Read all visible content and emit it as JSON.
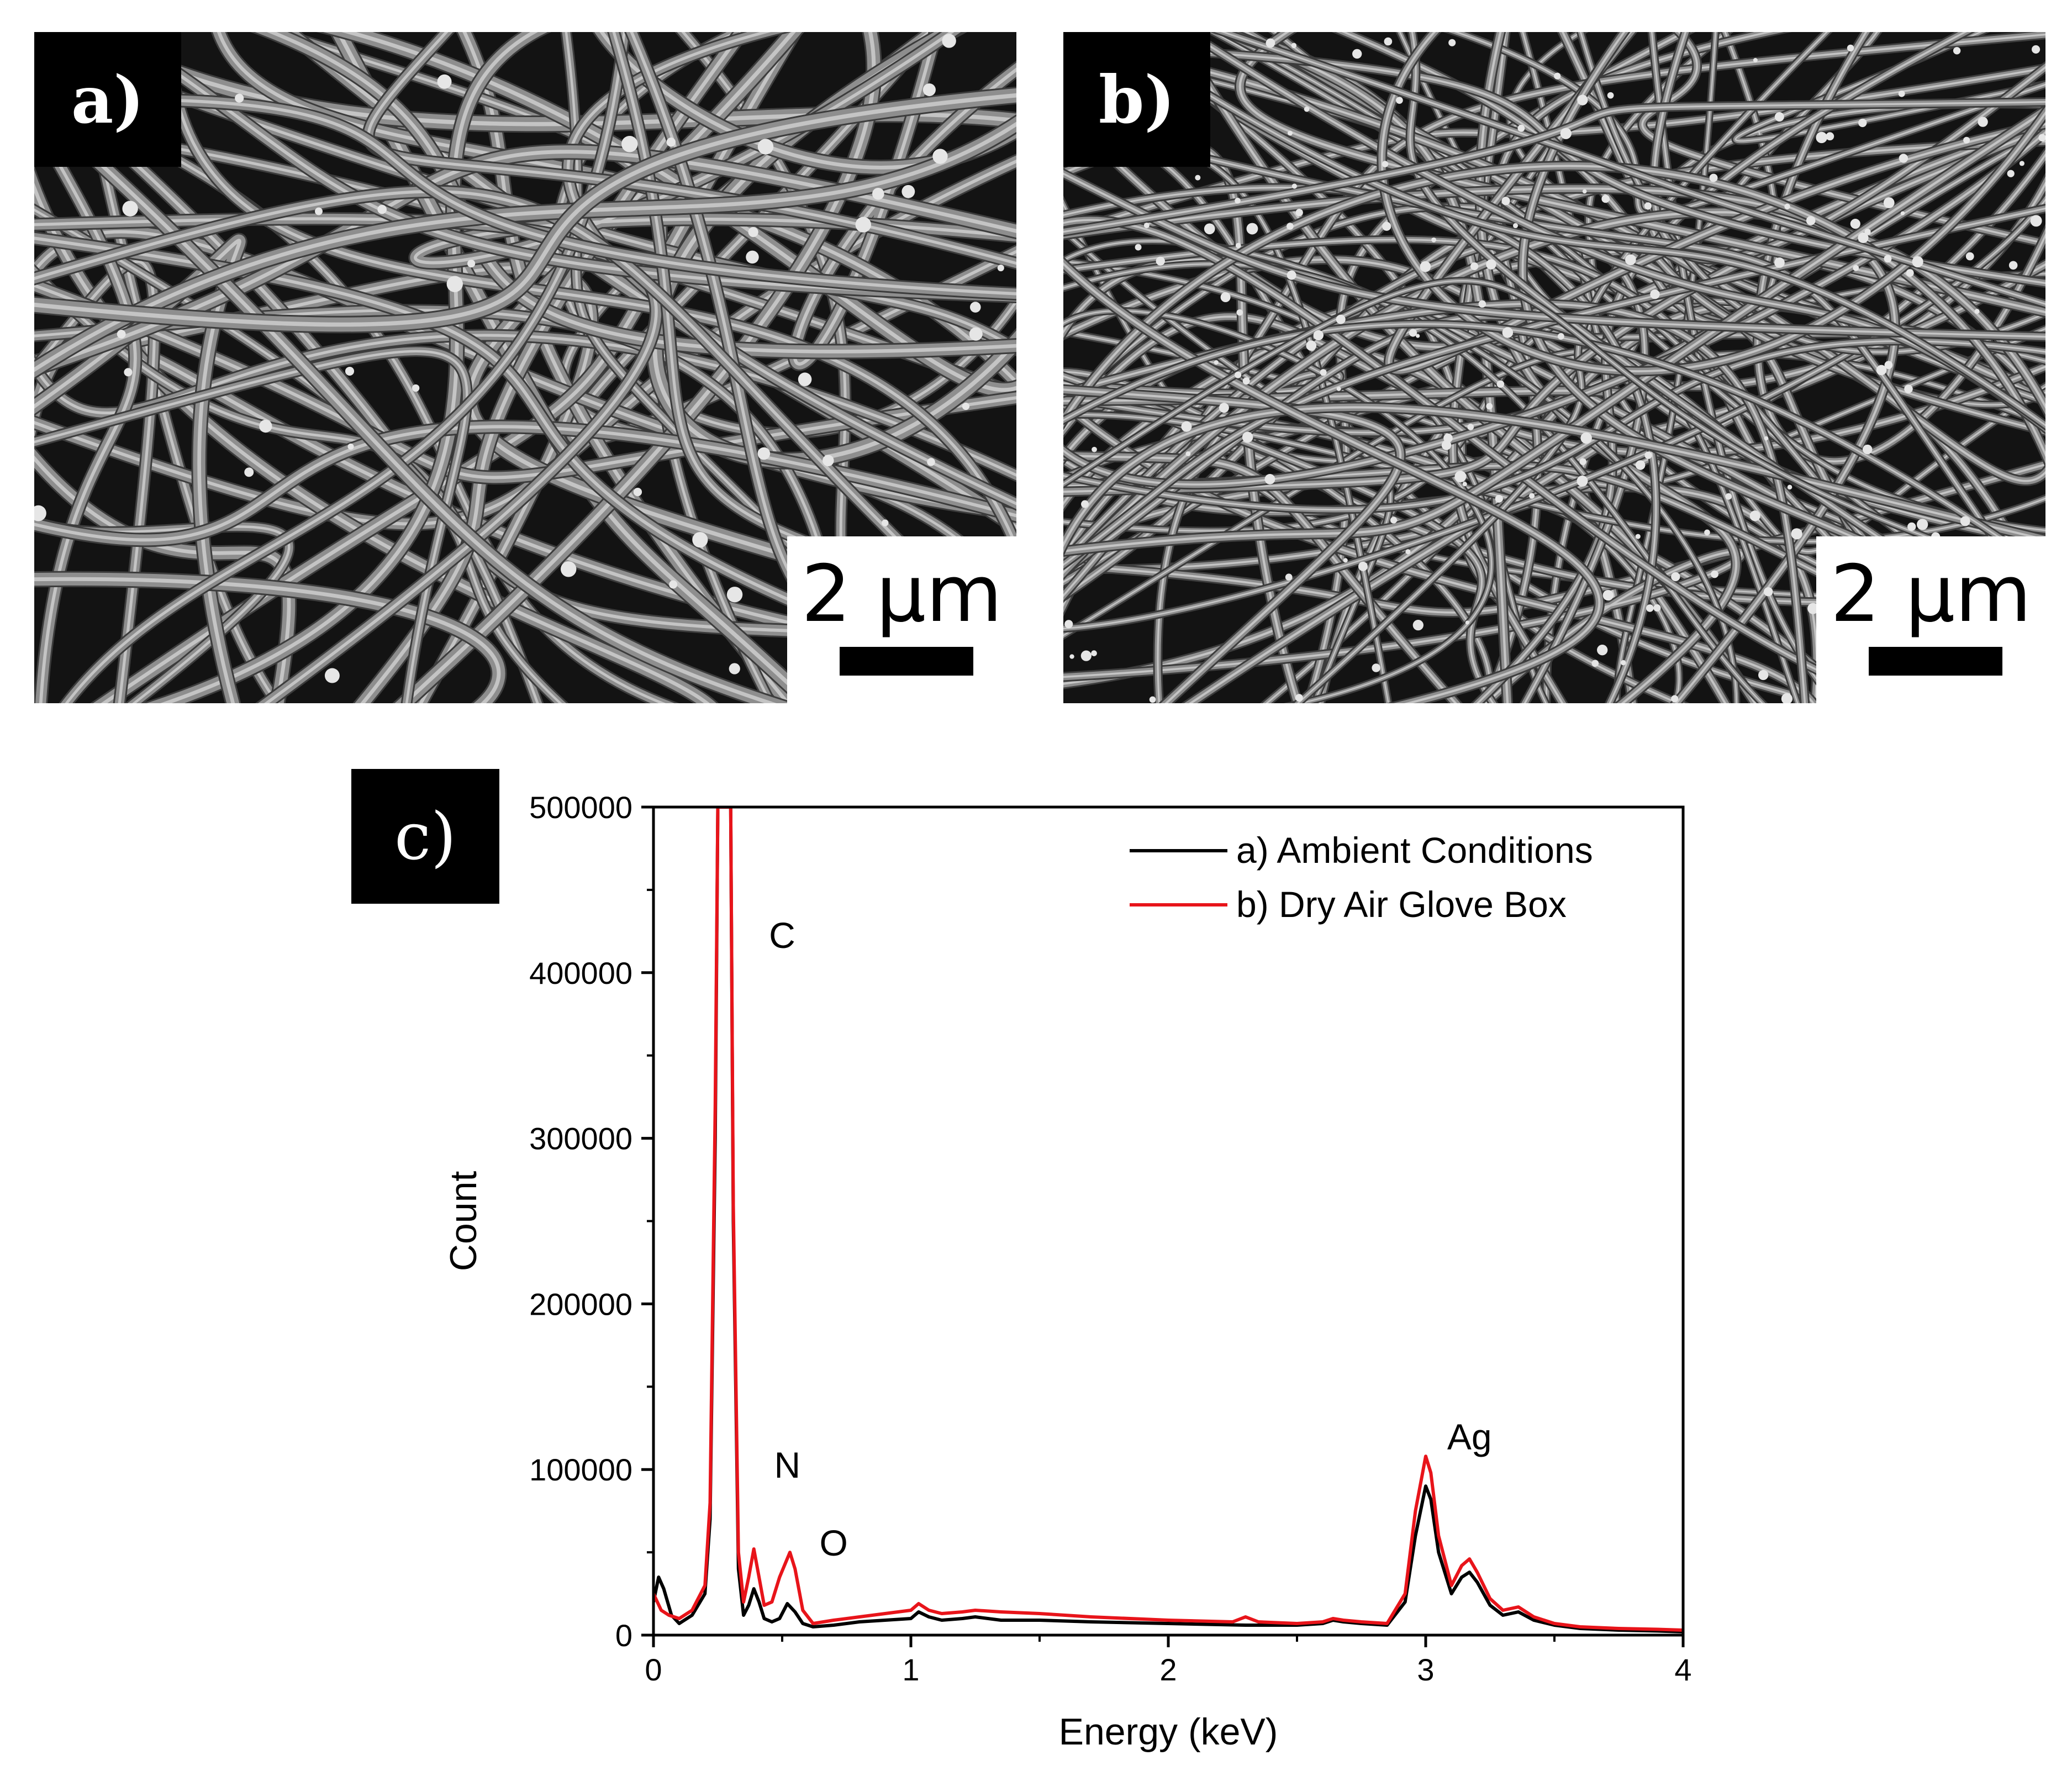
{
  "panels": [
    {
      "label": "a)",
      "scale_bar": "2 µm"
    },
    {
      "label": "b)",
      "scale_bar": "2 µm"
    }
  ],
  "chart_label": "c)",
  "chart_data": {
    "type": "line",
    "title": "",
    "xlabel": "Energy (keV)",
    "ylabel": "Count",
    "xlim": [
      0,
      4
    ],
    "ylim": [
      0,
      500000
    ],
    "x_ticks": [
      0,
      1,
      2,
      3,
      4
    ],
    "y_ticks": [
      0,
      100000,
      200000,
      300000,
      400000,
      500000
    ],
    "legend_position": "top-right",
    "grid": false,
    "series": [
      {
        "name": "a) Ambient Conditions",
        "color": "#000000",
        "x": [
          0,
          0.02,
          0.04,
          0.07,
          0.1,
          0.15,
          0.2,
          0.22,
          0.24,
          0.25,
          0.26,
          0.28,
          0.3,
          0.31,
          0.33,
          0.35,
          0.37,
          0.39,
          0.41,
          0.43,
          0.46,
          0.49,
          0.52,
          0.55,
          0.58,
          0.62,
          0.7,
          0.8,
          0.9,
          1.0,
          1.03,
          1.07,
          1.12,
          1.2,
          1.25,
          1.35,
          1.5,
          1.7,
          2.0,
          2.3,
          2.5,
          2.6,
          2.64,
          2.68,
          2.75,
          2.85,
          2.92,
          2.96,
          3.0,
          3.02,
          3.05,
          3.1,
          3.14,
          3.17,
          3.2,
          3.25,
          3.3,
          3.36,
          3.42,
          3.5,
          3.6,
          3.75,
          3.9,
          4.0
        ],
        "y": [
          20000,
          35000,
          28000,
          12000,
          7000,
          12000,
          25000,
          70000,
          300000,
          500000,
          500000,
          500000,
          500000,
          250000,
          40000,
          12000,
          18000,
          28000,
          20000,
          10000,
          8000,
          10000,
          19000,
          14000,
          7000,
          5000,
          6000,
          8000,
          9000,
          10000,
          14000,
          11000,
          9000,
          10000,
          11000,
          9000,
          9000,
          8000,
          7000,
          6000,
          6000,
          7000,
          9000,
          8000,
          7000,
          6000,
          20000,
          60000,
          90000,
          82000,
          50000,
          25000,
          35000,
          38000,
          32000,
          18000,
          12000,
          14000,
          9000,
          6000,
          4000,
          3000,
          2500,
          2000
        ]
      },
      {
        "name": "b) Dry Air Glove Box",
        "color": "#e8141a",
        "x": [
          0,
          0.03,
          0.06,
          0.1,
          0.15,
          0.2,
          0.22,
          0.24,
          0.25,
          0.26,
          0.28,
          0.3,
          0.31,
          0.33,
          0.35,
          0.37,
          0.39,
          0.41,
          0.43,
          0.46,
          0.49,
          0.53,
          0.55,
          0.58,
          0.62,
          0.7,
          0.8,
          0.9,
          1.0,
          1.03,
          1.07,
          1.12,
          1.2,
          1.25,
          1.35,
          1.5,
          1.7,
          2.0,
          2.25,
          2.3,
          2.35,
          2.5,
          2.6,
          2.64,
          2.68,
          2.75,
          2.85,
          2.92,
          2.96,
          3.0,
          3.02,
          3.05,
          3.1,
          3.14,
          3.17,
          3.2,
          3.25,
          3.3,
          3.36,
          3.42,
          3.5,
          3.6,
          3.75,
          3.9,
          4.0
        ],
        "y": [
          25000,
          15000,
          12000,
          10000,
          15000,
          30000,
          80000,
          320000,
          500000,
          500000,
          500000,
          500000,
          260000,
          50000,
          20000,
          35000,
          52000,
          35000,
          18000,
          20000,
          35000,
          50000,
          40000,
          15000,
          7000,
          9000,
          11000,
          13000,
          15000,
          19000,
          15000,
          13000,
          14000,
          15000,
          14000,
          13000,
          11000,
          9000,
          8000,
          11000,
          8000,
          7000,
          8000,
          10000,
          9000,
          8000,
          7000,
          25000,
          75000,
          108000,
          98000,
          60000,
          30000,
          42000,
          46000,
          38000,
          22000,
          15000,
          17000,
          11000,
          7000,
          5000,
          4000,
          3500,
          3000
        ]
      }
    ],
    "annotations": [
      {
        "text": "C",
        "x": 0.5,
        "y": 415000
      },
      {
        "text": "N",
        "x": 0.52,
        "y": 95000
      },
      {
        "text": "O",
        "x": 0.7,
        "y": 48000
      },
      {
        "text": "Ag",
        "x": 3.17,
        "y": 112000
      }
    ]
  }
}
